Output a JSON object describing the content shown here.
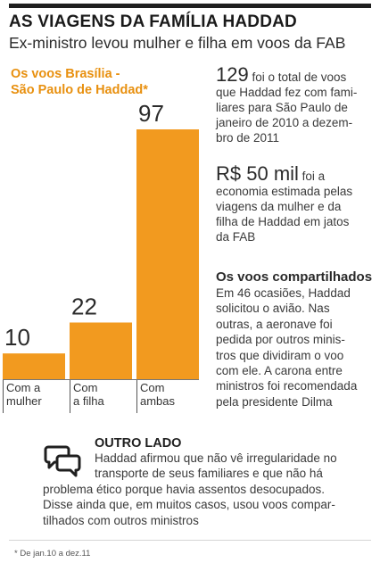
{
  "header": {
    "title": "AS VIAGENS DA FAMÍLIA HADDAD",
    "subtitle": "Ex-ministro levou mulher e filha em voos da FAB"
  },
  "chart_data": {
    "type": "bar",
    "title_lines": [
      "Os voos Brasília -",
      "São Paulo de Haddad*"
    ],
    "categories": [
      [
        "Com a",
        "mulher"
      ],
      [
        "Com",
        "a filha"
      ],
      [
        "Com",
        "ambas"
      ]
    ],
    "values": [
      10,
      22,
      97
    ],
    "data_labels": [
      "10",
      "22",
      "97"
    ],
    "bar_color": "#f29a1f",
    "xlabel": "",
    "ylabel": "",
    "grid": false,
    "legend": "none"
  },
  "facts": {
    "fact1": {
      "number": "129",
      "lines": [
        " foi o total de voos",
        "que Haddad fez com fami-",
        "liares para São Paulo de",
        "janeiro de 2010 a dezem-",
        "bro de 2011"
      ]
    },
    "fact2": {
      "number": "R$ 50 mil",
      "lines": [
        " foi a",
        "economia estimada pelas",
        "viagens da mulher e da",
        "filha de Haddad em jatos",
        "da FAB"
      ]
    }
  },
  "shared_flights": {
    "title": "Os voos compartilhados",
    "lines": [
      "Em 46 ocasiões, Haddad",
      "solicitou o avião. Nas",
      "outras, a aeronave foi",
      "pedida por outros minis-",
      "tros que dividiram o voo",
      "com ele. A carona entre",
      "ministros foi recomendada",
      "pela presidente Dilma"
    ]
  },
  "outro_lado": {
    "icon": "speech-bubbles-icon",
    "title": "OUTRO LADO",
    "lines": [
      "Haddad afirmou que não vê irregularidade no",
      "transporte de seus familiares e que não há",
      "problema ético porque havia assentos desocupados.",
      "Disse ainda que, em muitos casos, usou voos compar-",
      "tilhados com outros ministros"
    ]
  },
  "footnote": "* De jan.10 a dez.11",
  "colors": {
    "accent": "#f29a1f",
    "accent_text": "#e8900f",
    "rule": "#1f1f1f"
  }
}
